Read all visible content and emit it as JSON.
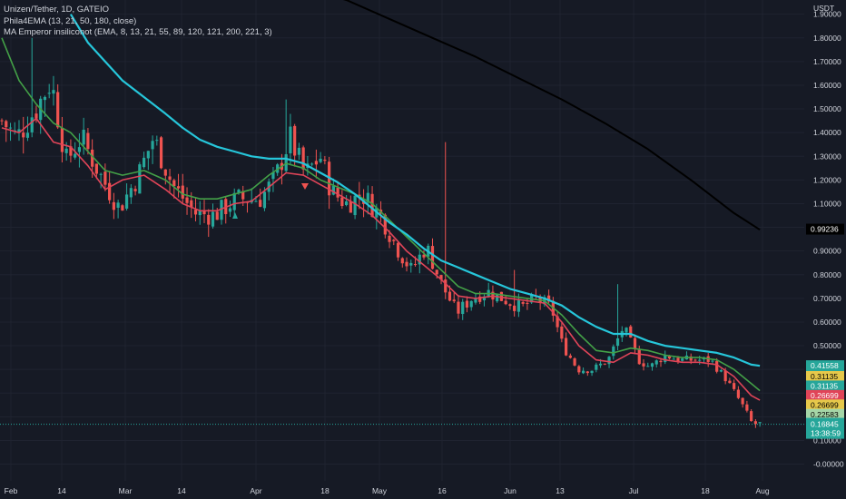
{
  "header": {
    "symbol_line": "Unizen/Tether, 1D, GATEIO",
    "indicator_1": "Phila4EMA (13, 21, 50, 180, close)",
    "indicator_2": "MA Emperor insiliconot (EMA, 8, 13, 21, 55, 89, 120, 121, 200, 221, 3)"
  },
  "colors": {
    "background": "#161a25",
    "grid": "#1f2330",
    "up": "#26a69a",
    "down": "#ef5350",
    "ema_13": "#e04458",
    "ema_21": "#43a047",
    "ema_50": "#26c6da",
    "ema_180": "#000000",
    "text": "#d1d4dc"
  },
  "chart_data": {
    "type": "candlestick",
    "title": "Unizen/Tether, 1D, GATEIO",
    "y_unit": "USDT",
    "ylim": [
      -0.04,
      2.0
    ],
    "y_ticks": [
      "1.90000",
      "1.80000",
      "1.70000",
      "1.60000",
      "1.50000",
      "1.40000",
      "1.30000",
      "1.20000",
      "1.10000",
      "1.00000",
      "0.90000",
      "0.80000",
      "0.70000",
      "0.60000",
      "0.50000",
      "0.40000",
      "0.30000",
      "0.20000",
      "0.10000",
      "-0.00000"
    ],
    "x_ticks": [
      "Feb",
      "14",
      "Mar",
      "14",
      "Apr",
      "18",
      "May",
      "16",
      "Jun",
      "13",
      "Jul",
      "18",
      "Aug"
    ],
    "grid": true,
    "ohlc_anchors": [
      {
        "date": "Jan 29",
        "close": 1.45
      },
      {
        "date": "Feb 01",
        "close": 1.38
      },
      {
        "date": "Feb 05",
        "close": 1.5
      },
      {
        "date": "Feb 08",
        "close": 1.62
      },
      {
        "date": "Feb 11",
        "close": 1.28
      },
      {
        "date": "Feb 15",
        "close": 1.38
      },
      {
        "date": "Feb 20",
        "close": 1.22
      },
      {
        "date": "Feb 24",
        "close": 1.08
      },
      {
        "date": "Feb 28",
        "close": 1.22
      },
      {
        "date": "Mar 03",
        "close": 1.38
      },
      {
        "date": "Mar 07",
        "close": 1.18
      },
      {
        "date": "Mar 12",
        "close": 1.06
      },
      {
        "date": "Mar 16",
        "close": 1.05
      },
      {
        "date": "Mar 21",
        "close": 1.12
      },
      {
        "date": "Mar 27",
        "close": 1.12
      },
      {
        "date": "Mar 31",
        "close": 1.2
      },
      {
        "date": "Apr 03",
        "close": 1.38
      },
      {
        "date": "Apr 06",
        "close": 1.22
      },
      {
        "date": "Apr 09",
        "close": 1.3
      },
      {
        "date": "Apr 12",
        "close": 1.15
      },
      {
        "date": "Apr 15",
        "close": 1.1
      },
      {
        "date": "Apr 19",
        "close": 1.14
      },
      {
        "date": "Apr 23",
        "close": 1.05
      },
      {
        "date": "Apr 27",
        "close": 0.92
      },
      {
        "date": "May 01",
        "close": 0.82
      },
      {
        "date": "May 05",
        "close": 0.92
      },
      {
        "date": "May 09",
        "close": 0.76
      },
      {
        "date": "May 13",
        "close": 0.64
      },
      {
        "date": "May 17",
        "close": 0.7
      },
      {
        "date": "May 21",
        "close": 0.73
      },
      {
        "date": "May 25",
        "close": 0.7
      },
      {
        "date": "May 30",
        "close": 0.66
      },
      {
        "date": "Jun 03",
        "close": 0.7
      },
      {
        "date": "Jun 07",
        "close": 0.66
      },
      {
        "date": "Jun 10",
        "close": 0.5
      },
      {
        "date": "Jun 14",
        "close": 0.4
      },
      {
        "date": "Jun 18",
        "close": 0.4
      },
      {
        "date": "Jun 22",
        "close": 0.44
      },
      {
        "date": "Jun 26",
        "close": 0.58
      },
      {
        "date": "Jun 30",
        "close": 0.44
      },
      {
        "date": "Jul 03",
        "close": 0.41
      },
      {
        "date": "Jul 07",
        "close": 0.46
      },
      {
        "date": "Jul 11",
        "close": 0.44
      },
      {
        "date": "Jul 15",
        "close": 0.44
      },
      {
        "date": "Jul 19",
        "close": 0.44
      },
      {
        "date": "Jul 23",
        "close": 0.36
      },
      {
        "date": "Jul 27",
        "close": 0.26
      },
      {
        "date": "Jul 30",
        "close": 0.17
      },
      {
        "date": "Aug 01",
        "close": 0.17
      }
    ],
    "series": [
      {
        "name": "EMA 13",
        "color": "#e04458",
        "points": [
          [
            0,
            1.42
          ],
          [
            4,
            1.4
          ],
          [
            8,
            1.46
          ],
          [
            12,
            1.36
          ],
          [
            16,
            1.34
          ],
          [
            20,
            1.26
          ],
          [
            24,
            1.16
          ],
          [
            28,
            1.2
          ],
          [
            33,
            1.22
          ],
          [
            38,
            1.16
          ],
          [
            42,
            1.1
          ],
          [
            46,
            1.07
          ],
          [
            50,
            1.07
          ],
          [
            54,
            1.1
          ],
          [
            58,
            1.11
          ],
          [
            62,
            1.17
          ],
          [
            66,
            1.23
          ],
          [
            70,
            1.22
          ],
          [
            74,
            1.18
          ],
          [
            78,
            1.14
          ],
          [
            82,
            1.1
          ],
          [
            86,
            1.05
          ],
          [
            90,
            0.98
          ],
          [
            94,
            0.9
          ],
          [
            98,
            0.84
          ],
          [
            102,
            0.78
          ],
          [
            106,
            0.71
          ],
          [
            110,
            0.7
          ],
          [
            114,
            0.71
          ],
          [
            118,
            0.7
          ],
          [
            122,
            0.69
          ],
          [
            126,
            0.68
          ],
          [
            130,
            0.6
          ],
          [
            134,
            0.5
          ],
          [
            138,
            0.44
          ],
          [
            142,
            0.43
          ],
          [
            146,
            0.47
          ],
          [
            150,
            0.46
          ],
          [
            154,
            0.44
          ],
          [
            158,
            0.43
          ],
          [
            162,
            0.43
          ],
          [
            166,
            0.42
          ],
          [
            170,
            0.37
          ],
          [
            174,
            0.29
          ],
          [
            176,
            0.27
          ]
        ]
      },
      {
        "name": "EMA 21",
        "color": "#43a047",
        "points": [
          [
            0,
            1.8
          ],
          [
            4,
            1.62
          ],
          [
            8,
            1.52
          ],
          [
            12,
            1.44
          ],
          [
            16,
            1.4
          ],
          [
            20,
            1.32
          ],
          [
            24,
            1.24
          ],
          [
            28,
            1.22
          ],
          [
            33,
            1.24
          ],
          [
            38,
            1.2
          ],
          [
            42,
            1.14
          ],
          [
            46,
            1.12
          ],
          [
            50,
            1.12
          ],
          [
            54,
            1.14
          ],
          [
            58,
            1.16
          ],
          [
            62,
            1.22
          ],
          [
            66,
            1.27
          ],
          [
            70,
            1.25
          ],
          [
            74,
            1.2
          ],
          [
            78,
            1.17
          ],
          [
            82,
            1.14
          ],
          [
            86,
            1.1
          ],
          [
            90,
            1.03
          ],
          [
            94,
            0.96
          ],
          [
            98,
            0.89
          ],
          [
            102,
            0.82
          ],
          [
            106,
            0.75
          ],
          [
            110,
            0.72
          ],
          [
            114,
            0.72
          ],
          [
            118,
            0.71
          ],
          [
            122,
            0.7
          ],
          [
            126,
            0.69
          ],
          [
            130,
            0.63
          ],
          [
            134,
            0.55
          ],
          [
            138,
            0.48
          ],
          [
            142,
            0.47
          ],
          [
            146,
            0.49
          ],
          [
            150,
            0.48
          ],
          [
            154,
            0.46
          ],
          [
            158,
            0.45
          ],
          [
            162,
            0.45
          ],
          [
            166,
            0.44
          ],
          [
            170,
            0.4
          ],
          [
            174,
            0.34
          ],
          [
            176,
            0.31
          ]
        ]
      },
      {
        "name": "EMA 50",
        "color": "#26c6da",
        "points": [
          [
            16,
            1.9
          ],
          [
            20,
            1.78
          ],
          [
            24,
            1.7
          ],
          [
            28,
            1.62
          ],
          [
            33,
            1.55
          ],
          [
            38,
            1.48
          ],
          [
            42,
            1.42
          ],
          [
            46,
            1.37
          ],
          [
            50,
            1.34
          ],
          [
            54,
            1.32
          ],
          [
            58,
            1.3
          ],
          [
            62,
            1.29
          ],
          [
            66,
            1.29
          ],
          [
            70,
            1.27
          ],
          [
            74,
            1.23
          ],
          [
            78,
            1.19
          ],
          [
            82,
            1.14
          ],
          [
            86,
            1.08
          ],
          [
            90,
            1.02
          ],
          [
            94,
            0.97
          ],
          [
            98,
            0.91
          ],
          [
            102,
            0.86
          ],
          [
            106,
            0.83
          ],
          [
            110,
            0.8
          ],
          [
            114,
            0.77
          ],
          [
            118,
            0.74
          ],
          [
            122,
            0.72
          ],
          [
            126,
            0.7
          ],
          [
            130,
            0.67
          ],
          [
            134,
            0.62
          ],
          [
            138,
            0.58
          ],
          [
            142,
            0.55
          ],
          [
            146,
            0.55
          ],
          [
            150,
            0.52
          ],
          [
            154,
            0.5
          ],
          [
            158,
            0.49
          ],
          [
            162,
            0.48
          ],
          [
            166,
            0.47
          ],
          [
            170,
            0.45
          ],
          [
            174,
            0.42
          ],
          [
            176,
            0.415
          ]
        ]
      },
      {
        "name": "EMA 180",
        "color": "#000000",
        "points": [
          [
            72,
            2.0
          ],
          [
            80,
            1.96
          ],
          [
            90,
            1.88
          ],
          [
            100,
            1.8
          ],
          [
            110,
            1.72
          ],
          [
            120,
            1.63
          ],
          [
            130,
            1.54
          ],
          [
            140,
            1.44
          ],
          [
            150,
            1.33
          ],
          [
            160,
            1.2
          ],
          [
            170,
            1.06
          ],
          [
            176,
            0.99
          ]
        ]
      }
    ],
    "price_tags": [
      {
        "label": "0.99236",
        "value": 0.99236,
        "bg": "#000000",
        "fg": "#ffffff"
      },
      {
        "label": "0.41558",
        "value": 0.41558,
        "bg": "#26a69a",
        "fg": "#ffffff"
      },
      {
        "label": "0.31135",
        "value": 0.37,
        "bg": "#e6c84a",
        "fg": "#000000"
      },
      {
        "label": "0.31135",
        "value": 0.33,
        "bg": "#26a69a",
        "fg": "#ffffff"
      },
      {
        "label": "0.26699",
        "value": 0.29,
        "bg": "#e04458",
        "fg": "#ffffff"
      },
      {
        "label": "0.26699",
        "value": 0.25,
        "bg": "#e6c84a",
        "fg": "#000000"
      },
      {
        "label": "0.22583",
        "value": 0.21,
        "bg": "#a5d6a7",
        "fg": "#000000"
      }
    ],
    "last_price": {
      "label": "0.16845",
      "countdown": "13:38:59",
      "value": 0.16845
    }
  }
}
